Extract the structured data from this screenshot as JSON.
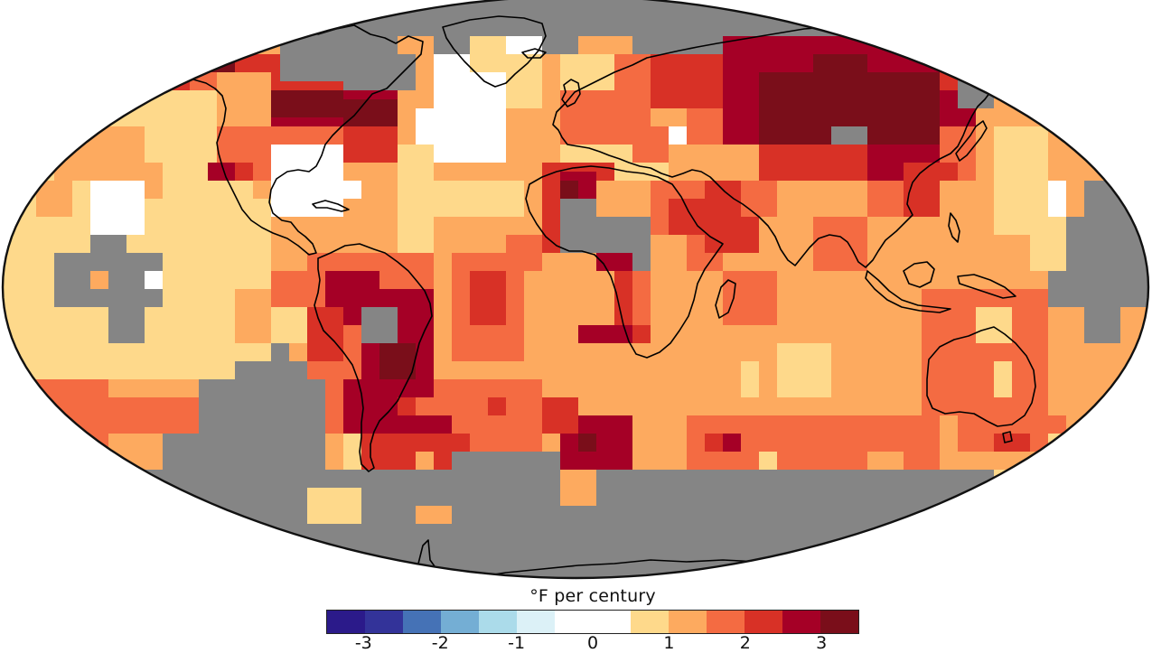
{
  "figure": {
    "type": "temperature-trend-map",
    "projection": "Robinson"
  },
  "legend": {
    "title": "°F per century",
    "bins": [
      {
        "color": "#2b1a8a",
        "range": "< -3",
        "weight": 1
      },
      {
        "color": "#333399",
        "range": "-3 to -2.5",
        "weight": 1
      },
      {
        "color": "#4572b6",
        "range": "-2.5 to -2",
        "weight": 1
      },
      {
        "color": "#74aed4",
        "range": "-2 to -1.5",
        "weight": 1
      },
      {
        "color": "#abdbea",
        "range": "-1.5 to -1",
        "weight": 1
      },
      {
        "color": "#dcf1f7",
        "range": "-1 to -0.5",
        "weight": 1
      },
      {
        "color": "#ffffff",
        "range": "-0.5 to 0.5",
        "weight": 2
      },
      {
        "color": "#fed98b",
        "range": "0.5 to 1",
        "weight": 1
      },
      {
        "color": "#fdaa5f",
        "range": "1 to 1.5",
        "weight": 1
      },
      {
        "color": "#f46b42",
        "range": "1.5 to 2",
        "weight": 1
      },
      {
        "color": "#d83126",
        "range": "2 to 2.5",
        "weight": 1
      },
      {
        "color": "#a50026",
        "range": "2.5 to 3",
        "weight": 1
      },
      {
        "color": "#7a0e1a",
        "range": "> 3",
        "weight": 1
      }
    ],
    "ticks": [
      {
        "label": "-3",
        "pos": 0.07
      },
      {
        "label": "-2",
        "pos": 0.214
      },
      {
        "label": "-1",
        "pos": 0.357
      },
      {
        "label": "0",
        "pos": 0.5
      },
      {
        "label": "1",
        "pos": 0.643
      },
      {
        "label": "2",
        "pos": 0.786
      },
      {
        "label": "3",
        "pos": 0.929
      }
    ]
  },
  "colors": {
    "no_data": "#858585",
    "coastline": "#000000",
    "map_border": "#111111"
  },
  "chart_data": {
    "type": "heatmap",
    "title": "°F per century",
    "colorbar": {
      "ticks": [
        -3,
        -2,
        -1,
        0,
        1,
        2,
        3
      ],
      "bins": 13,
      "no_data_color": "#858585"
    },
    "regions": [
      {
        "region": "Alaska / NW Canada",
        "class": "2.5 to >3"
      },
      {
        "region": "Canadian prairies",
        "class": "2 to 3"
      },
      {
        "region": "Northern Canada / Greenland",
        "class": "no data"
      },
      {
        "region": "North Atlantic south of Greenland",
        "class": "-0.5 to 0.5"
      },
      {
        "region": "SE United States",
        "class": "-0.5 to 0.5"
      },
      {
        "region": "Western US / NE Pacific",
        "class": "1 to 2"
      },
      {
        "region": "Central Pacific (east)",
        "class": "0.5 to 1"
      },
      {
        "region": "Central Pacific gap",
        "class": "no data"
      },
      {
        "region": "Europe",
        "class": "2 to 2.5"
      },
      {
        "region": "Siberia / Central Asia",
        "class": "2.5 to >3"
      },
      {
        "region": "Mongolia",
        "class": "no data"
      },
      {
        "region": "Sahara / West Africa",
        "class": "2.5 to >3"
      },
      {
        "region": "Central Africa",
        "class": "no data"
      },
      {
        "region": "Arabia",
        "class": "2 to 2.5"
      },
      {
        "region": "India / SE Asia",
        "class": "1 to 2"
      },
      {
        "region": "Western Pacific",
        "class": "0.5 to 1.5"
      },
      {
        "region": "Western Pacific gap",
        "class": "no data"
      },
      {
        "region": "Amazon / Brazil",
        "class": "2.5 to >3"
      },
      {
        "region": "South Atlantic",
        "class": "1.5 to 2"
      },
      {
        "region": "Indian Ocean",
        "class": "1 to 2"
      },
      {
        "region": "Australia",
        "class": "1.5 to 2"
      },
      {
        "region": "Southern Ocean / Antarctica",
        "class": "no data"
      },
      {
        "region": "Argentina",
        "class": "2.5 to 3"
      },
      {
        "region": "SE Pacific",
        "class": "no data"
      }
    ]
  }
}
